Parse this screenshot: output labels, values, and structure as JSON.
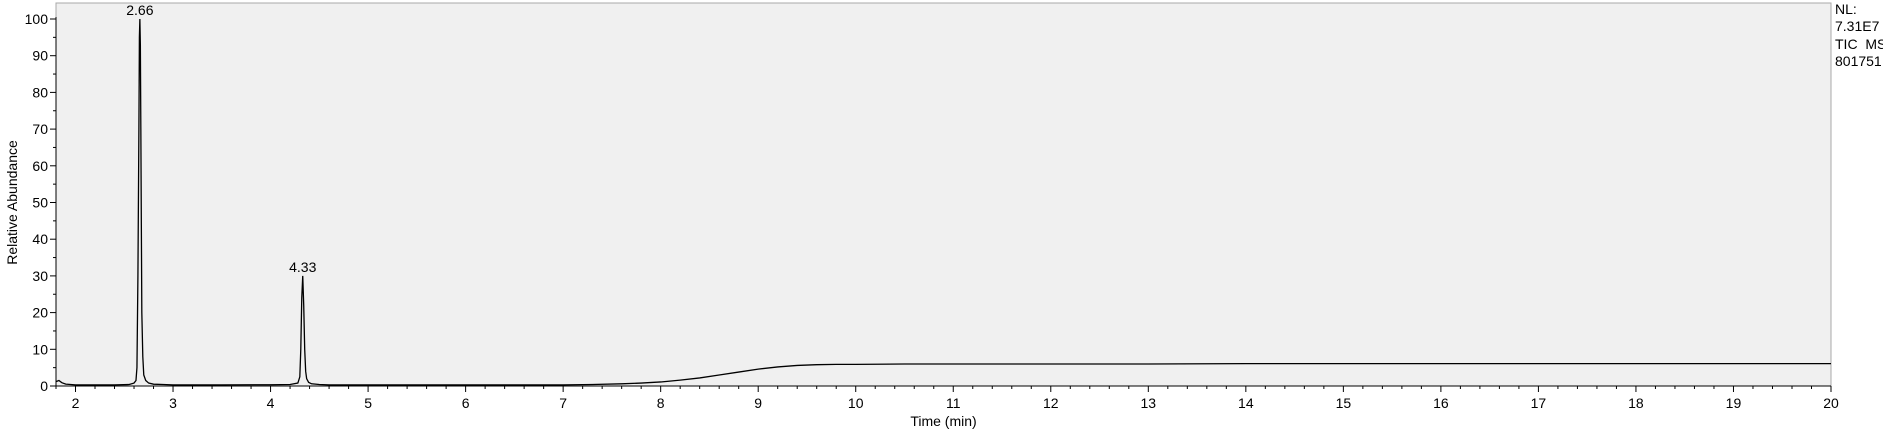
{
  "chart_data": {
    "type": "line",
    "xlabel": "Time (min)",
    "ylabel": "Relative Abundance",
    "xlim": [
      1.8,
      20
    ],
    "ylim": [
      0,
      100
    ],
    "x_ticks": [
      2,
      3,
      4,
      5,
      6,
      7,
      8,
      9,
      10,
      11,
      12,
      13,
      14,
      15,
      16,
      17,
      18,
      19,
      20
    ],
    "y_ticks": [
      0,
      10,
      20,
      30,
      40,
      50,
      60,
      70,
      80,
      90,
      100
    ],
    "plot_background": "#f0f0f0",
    "line_color": "#000000",
    "info": {
      "nl_label": "NL:",
      "nl_value": "7.31E7",
      "detector": "TIC  MS",
      "sample": "801751"
    },
    "peaks": [
      {
        "label": "2.66",
        "x": 2.66,
        "y": 100
      },
      {
        "label": "4.33",
        "x": 4.33,
        "y": 30
      }
    ],
    "series": [
      {
        "x": [
          1.8,
          1.83,
          1.86,
          1.9,
          1.95,
          2.0,
          2.2,
          2.4,
          2.55,
          2.6,
          2.62,
          2.63,
          2.64,
          2.65,
          2.655,
          2.66,
          2.665,
          2.67,
          2.675,
          2.68,
          2.69,
          2.7,
          2.72,
          2.75,
          2.8,
          2.9,
          3.0,
          3.5,
          4.0,
          4.2,
          4.28,
          4.3,
          4.31,
          4.32,
          4.33,
          4.34,
          4.35,
          4.36,
          4.37,
          4.39,
          4.42,
          4.5,
          4.6,
          5.0,
          6.0,
          7.0,
          7.3,
          7.6,
          7.8,
          8.0,
          8.2,
          8.4,
          8.6,
          8.8,
          9.0,
          9.2,
          9.4,
          9.6,
          9.8,
          10.0,
          10.5,
          11.0,
          12.0,
          13.0,
          14.0,
          15.0,
          16.0,
          17.0,
          18.0,
          19.0,
          20.0
        ],
        "y": [
          1.2,
          1.5,
          0.9,
          0.5,
          0.4,
          0.3,
          0.3,
          0.3,
          0.4,
          0.8,
          1.5,
          5,
          30,
          70,
          95,
          100,
          93,
          70,
          44,
          20,
          8,
          3,
          1.5,
          0.8,
          0.5,
          0.4,
          0.3,
          0.3,
          0.35,
          0.4,
          0.8,
          2.5,
          10,
          24,
          30,
          22,
          10,
          4,
          2,
          1.0,
          0.6,
          0.4,
          0.3,
          0.3,
          0.3,
          0.3,
          0.4,
          0.6,
          0.8,
          1.1,
          1.6,
          2.2,
          3.0,
          3.8,
          4.6,
          5.2,
          5.6,
          5.8,
          5.9,
          5.9,
          6.0,
          6.0,
          6.0,
          6.0,
          6.1,
          6.1,
          6.1,
          6.1,
          6.1,
          6.1,
          6.1
        ]
      }
    ]
  }
}
